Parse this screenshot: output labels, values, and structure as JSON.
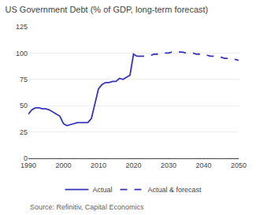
{
  "chart_data": {
    "type": "line",
    "title": "US Government Debt (% of GDP, long-term forecast)",
    "annotations": [
      "Source: Refinitiv, Capital Economics"
    ],
    "series": [
      {
        "name": "Actual",
        "color": "#3333bb",
        "line_style": "solid",
        "x": [
          1990,
          1991,
          1992,
          1993,
          1994,
          1995,
          1996,
          1997,
          1998,
          1999,
          2000,
          2001,
          2002,
          2003,
          2004,
          2005,
          2006,
          2007,
          2008,
          2009,
          2010,
          2011,
          2012,
          2013,
          2014,
          2015,
          2016,
          2017,
          2018,
          2019,
          2020,
          2021
        ],
        "values": [
          42,
          46,
          48,
          48,
          47,
          47,
          46,
          44,
          42,
          40,
          33,
          31,
          32,
          33,
          34,
          34,
          34,
          34,
          38,
          52,
          66,
          70,
          72,
          72,
          73,
          73,
          76,
          75,
          77,
          79,
          99,
          97
        ]
      },
      {
        "name": "Actual & forecast",
        "color": "#3333bb",
        "line_style": "dashed",
        "x": [
          2021,
          2022,
          2023,
          2024,
          2025,
          2026,
          2027,
          2028,
          2029,
          2030,
          2031,
          2032,
          2033,
          2034,
          2035,
          2036,
          2037,
          2038,
          2039,
          2040,
          2041,
          2042,
          2043,
          2044,
          2045,
          2046,
          2047,
          2048,
          2049,
          2050
        ],
        "values": [
          97,
          97,
          97,
          97,
          98,
          99,
          99,
          100,
          100,
          100,
          101,
          101,
          101,
          101,
          100,
          100,
          100,
          99,
          99,
          98,
          98,
          97,
          97,
          96,
          96,
          95,
          95,
          94,
          94,
          93
        ]
      }
    ],
    "xlim": [
      1990,
      2050
    ],
    "xticks": [
      1990,
      2000,
      2010,
      2020,
      2030,
      2040,
      2050
    ],
    "ylim": [
      0,
      125
    ],
    "yticks": [
      0,
      25,
      50,
      75,
      100,
      125
    ],
    "grid": "y",
    "legend": "bottom"
  }
}
